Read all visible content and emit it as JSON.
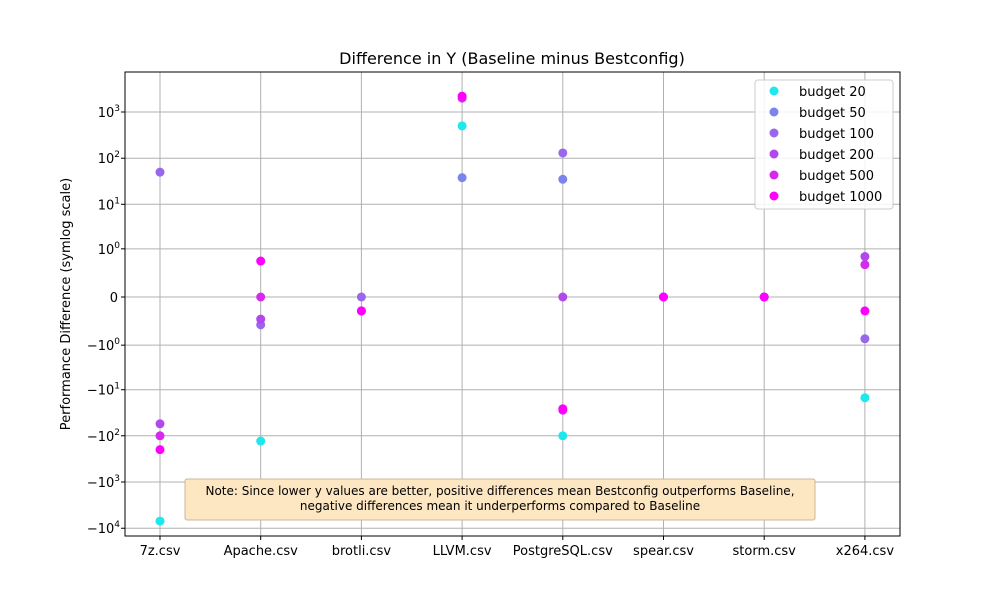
{
  "chart_data": {
    "type": "scatter",
    "title": "Difference in Y (Baseline minus Bestconfig)",
    "xlabel": "",
    "ylabel": "Performance Difference (symlog scale)",
    "yscale": "symlog",
    "ylim": [
      -10000,
      5000
    ],
    "grid": true,
    "legend_position": "top-right",
    "categories": [
      "7z.csv",
      "Apache.csv",
      "brotli.csv",
      "LLVM.csv",
      "PostgreSQL.csv",
      "spear.csv",
      "storm.csv",
      "x264.csv"
    ],
    "y_ticks": [
      {
        "value": 1000,
        "base": "10",
        "exp": "3"
      },
      {
        "value": 100,
        "base": "10",
        "exp": "2"
      },
      {
        "value": 10,
        "base": "10",
        "exp": "1"
      },
      {
        "value": 1,
        "base": "10",
        "exp": "0"
      },
      {
        "value": 0,
        "base": "0",
        "exp": ""
      },
      {
        "value": -1,
        "base": "−10",
        "exp": "0"
      },
      {
        "value": -10,
        "base": "−10",
        "exp": "1"
      },
      {
        "value": -100,
        "base": "−10",
        "exp": "2"
      },
      {
        "value": -1000,
        "base": "−10",
        "exp": "3"
      },
      {
        "value": -10000,
        "base": "−10",
        "exp": "4"
      }
    ],
    "series": [
      {
        "name": "budget 20",
        "color": "#1ee8ee",
        "values": [
          -7000,
          -130,
          -0.1,
          500,
          -100,
          0,
          0,
          -15
        ]
      },
      {
        "name": "budget 50",
        "color": "#7b84ee",
        "values": [
          null,
          null,
          null,
          38,
          35,
          null,
          null,
          null
        ]
      },
      {
        "name": "budget 100",
        "color": "#9966ee",
        "values": [
          50,
          -0.3,
          0,
          null,
          130,
          null,
          null,
          -0.7
        ]
      },
      {
        "name": "budget 200",
        "color": "#b048ee",
        "values": [
          -55,
          -0.2,
          null,
          null,
          0,
          null,
          null,
          0.65
        ]
      },
      {
        "name": "budget 500",
        "color": "#d52aee",
        "values": [
          -100,
          0,
          -0.1,
          2000,
          -28,
          0,
          0,
          0.4
        ]
      },
      {
        "name": "budget 1000",
        "color": "#ff00ff",
        "values": [
          -200,
          0.5,
          -0.1,
          2200,
          -26,
          0,
          0,
          -0.1
        ]
      }
    ],
    "annotation": {
      "line1": "Note: Since lower y values are better, positive differences mean Bestconfig outperforms Baseline,",
      "line2": "negative differences mean it underperforms compared to Baseline"
    }
  }
}
